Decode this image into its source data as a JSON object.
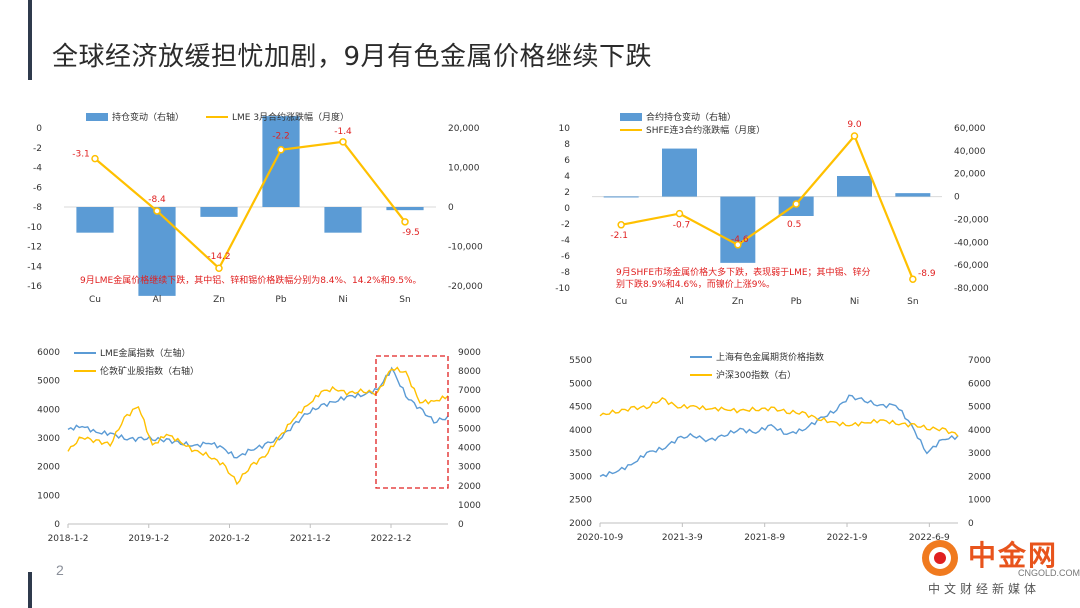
{
  "slide": {
    "title": "全球经济放缓担忧加剧，9月有色金属价格继续下跌",
    "page_number": "2"
  },
  "watermark": {
    "name": "中金网",
    "domain": "CNGOLD.COM.CN",
    "slogan": "中文财经新媒体"
  },
  "colors": {
    "bar": "#5b9bd5",
    "line": "#ffc000",
    "label": "#e02020",
    "accent": "#2f3a4c",
    "box": "#e02020"
  },
  "chart_data": [
    {
      "type": "bar+line",
      "title": "",
      "categories": [
        "Cu",
        "Al",
        "Zn",
        "Pb",
        "Ni",
        "Sn"
      ],
      "legend": [
        "持仓变动（右轴）",
        "LME 3月合约涨跌幅（月度）"
      ],
      "series": [
        {
          "name": "持仓变动（右轴）",
          "axis": "right",
          "values": [
            -6500,
            -22500,
            -2500,
            23000,
            -6500,
            -800
          ]
        },
        {
          "name": "LME 3月合约涨跌幅（月度）",
          "axis": "left",
          "values": [
            -3.1,
            -8.4,
            -14.2,
            -2.2,
            -1.4,
            -9.5
          ]
        }
      ],
      "data_labels": [
        "-3.1",
        "-8.4",
        "-14.2",
        "-2.2",
        "-1.4",
        "-9.5"
      ],
      "y_left": {
        "min": -16,
        "max": 0,
        "ticks": [
          "0",
          "-2",
          "-4",
          "-6",
          "-8",
          "-10",
          "-12",
          "-14",
          "-16"
        ]
      },
      "y_right": {
        "min": -20000,
        "max": 20000,
        "ticks": [
          "20,000",
          "10,000",
          "0",
          "-10,000",
          "-20,000"
        ]
      },
      "annotation": "9月LME金属价格继续下跌，其中铝、锌和锡价格跌幅分别为8.4%、14.2%和9.5%。"
    },
    {
      "type": "bar+line",
      "title": "",
      "categories": [
        "Cu",
        "Al",
        "Zn",
        "Pb",
        "Ni",
        "Sn"
      ],
      "legend": [
        "合约持仓变动（右轴）",
        "SHFE连3合约涨跌幅（月度）"
      ],
      "series": [
        {
          "name": "合约持仓变动（右轴）",
          "axis": "right",
          "values": [
            100,
            42000,
            -58000,
            -17000,
            18000,
            3000
          ]
        },
        {
          "name": "SHFE连3合约涨跌幅（月度）",
          "axis": "left",
          "values": [
            -2.1,
            -0.7,
            -4.6,
            0.5,
            9.0,
            -8.9
          ]
        }
      ],
      "data_labels": [
        "-2.1",
        "-0.7",
        "-4.6",
        "0.5",
        "9.0",
        "-8.9"
      ],
      "y_left": {
        "min": -10,
        "max": 10,
        "ticks": [
          "10",
          "8",
          "6",
          "4",
          "2",
          "0",
          "-2",
          "-4",
          "-6",
          "-8",
          "-10"
        ]
      },
      "y_right": {
        "min": -80000,
        "max": 60000,
        "ticks": [
          "60,000",
          "40,000",
          "20,000",
          "0",
          "-20,000",
          "-40,000",
          "-60,000",
          "-80,000"
        ]
      },
      "annotation": "9月SHFE市场金属价格大多下跌，表现弱于LME；其中锡、锌分别下跌8.9%和4.6%，而镍价上涨9%。"
    },
    {
      "type": "line",
      "title": "",
      "x_ticks": [
        "2018-1-2",
        "2019-1-2",
        "2020-1-2",
        "2021-1-2",
        "2022-1-2"
      ],
      "legend": [
        "LME金属指数（左轴）",
        "伦敦矿业股指数（右轴）"
      ],
      "series": [
        {
          "name": "LME金属指数（左轴）",
          "axis": "left",
          "values": [
            3300,
            3420,
            3200,
            3150,
            3000,
            2950,
            3000,
            2900,
            2850,
            2700,
            2850,
            2650,
            2300,
            2600,
            2750,
            3000,
            3400,
            3900,
            4100,
            4300,
            4450,
            4500,
            4700,
            5400,
            4500,
            4000,
            3600,
            3700
          ]
        },
        {
          "name": "伦敦矿业股指数（右轴）",
          "axis": "right",
          "values": [
            3800,
            4600,
            4300,
            4200,
            5500,
            6200,
            4100,
            4700,
            4300,
            3800,
            3600,
            3100,
            2200,
            3000,
            3600,
            4500,
            5500,
            6200,
            6900,
            7100,
            6800,
            7000,
            6800,
            8200,
            7900,
            6400,
            6400,
            6700
          ]
        }
      ],
      "y_left": {
        "min": 0,
        "max": 6000,
        "ticks": [
          "6000",
          "5000",
          "4000",
          "3000",
          "2000",
          "1000",
          "0"
        ]
      },
      "y_right": {
        "min": 0,
        "max": 9000,
        "ticks": [
          "9000",
          "8000",
          "7000",
          "6000",
          "5000",
          "4000",
          "3000",
          "2000",
          "1000",
          "0"
        ]
      },
      "highlight": "2022 period (dashed box)"
    },
    {
      "type": "line",
      "title": "",
      "x_ticks": [
        "2020-10-9",
        "2021-3-9",
        "2021-8-9",
        "2022-1-9",
        "2022-6-9"
      ],
      "legend": [
        "上海有色金属期货价格指数",
        "沪深300指数（右）"
      ],
      "series": [
        {
          "name": "上海有色金属期货价格指数",
          "axis": "left",
          "values": [
            3000,
            3100,
            3250,
            3500,
            3600,
            3800,
            3900,
            3750,
            3900,
            4000,
            3950,
            4100,
            3900,
            4000,
            4200,
            4400,
            4700,
            4650,
            4500,
            4550,
            4100,
            3500,
            3800,
            3850
          ]
        },
        {
          "name": "沪深300指数（右）",
          "axis": "right",
          "values": [
            4600,
            4800,
            4900,
            5000,
            5300,
            5000,
            5000,
            4900,
            4900,
            4800,
            4900,
            4900,
            4800,
            4700,
            4500,
            4300,
            4200,
            4300,
            4400,
            4300,
            4200,
            4100,
            4000,
            3800
          ]
        }
      ],
      "y_left": {
        "min": 2000,
        "max": 5500,
        "ticks": [
          "5500",
          "5000",
          "4500",
          "4000",
          "3500",
          "3000",
          "2500",
          "2000"
        ]
      },
      "y_right": {
        "min": 0,
        "max": 7000,
        "ticks": [
          "7000",
          "6000",
          "5000",
          "4000",
          "3000",
          "2000",
          "1000",
          "0"
        ]
      }
    }
  ]
}
